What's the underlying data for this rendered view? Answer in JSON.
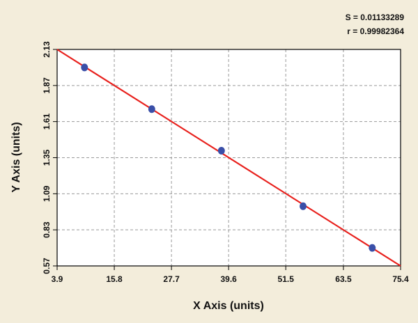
{
  "chart_data": {
    "type": "scatter",
    "x_label": "X Axis (units)",
    "y_label": "Y Axis (units)",
    "annotations": [
      "S = 0.01133289",
      "r = 0.99982364"
    ],
    "series": [
      {
        "name": null,
        "color": "#3a4fa8",
        "x": [
          9.6,
          23.6,
          38.1,
          55.1,
          69.5
        ],
        "values": [
          2.0,
          1.7,
          1.4,
          1.0,
          0.7
        ]
      }
    ],
    "fit_line": {
      "color": "#e8201c",
      "x": [
        3.9,
        75.4
      ],
      "values": [
        2.13,
        0.57
      ]
    },
    "xlim": [
      3.9,
      75.4
    ],
    "xticks": [
      3.9,
      15.8,
      27.7,
      39.6,
      51.5,
      63.5,
      75.4
    ],
    "ylim": [
      0.57,
      2.13
    ],
    "yticks": [
      0.57,
      0.83,
      1.09,
      1.35,
      1.61,
      1.87,
      2.13
    ],
    "grid": true
  }
}
